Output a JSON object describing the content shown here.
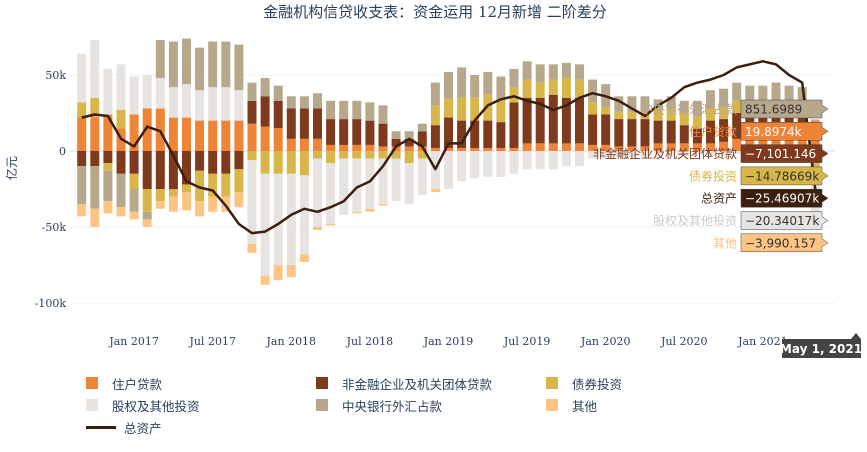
{
  "chart_data": {
    "type": "bar",
    "barmode": "relative",
    "title": "金融机构信贷收支表：资金运用 12月新增 二阶差分",
    "ylabel": "亿元",
    "ylim": [
      -115000,
      75000
    ],
    "yticks": [
      50000,
      0,
      -50000,
      -100000
    ],
    "ytick_labels": [
      "50k",
      "0",
      "-50k",
      "-100k"
    ],
    "x_start": "2016-09",
    "x_months": 57,
    "xticks": [
      "2017-01",
      "2017-07",
      "2018-01",
      "2018-07",
      "2019-01",
      "2019-07",
      "2020-01",
      "2020-07",
      "2021-01"
    ],
    "xtick_labels": [
      "Jan 2017",
      "Jul 2017",
      "Jan 2018",
      "Jul 2018",
      "Jan 2019",
      "Jul 2019",
      "Jan 2020",
      "Jul 2020",
      "Jan 2021"
    ],
    "series": [
      {
        "name": "住户贷款",
        "color": "#ed8438",
        "values": [
          22000,
          22000,
          24000,
          15000,
          24000,
          28000,
          28000,
          22000,
          22000,
          20000,
          20000,
          20000,
          20000,
          18000,
          16000,
          15000,
          8000,
          8000,
          8000,
          4000,
          4000,
          4000,
          4000,
          3000,
          3000,
          3000,
          3000,
          2000,
          2000,
          2000,
          2000,
          2000,
          2000,
          2000,
          5000,
          5000,
          5000,
          5000,
          5000,
          4000,
          4000,
          3000,
          3000,
          3000,
          5000,
          5000,
          5000,
          5000,
          5000,
          6000,
          8000,
          8000,
          8000,
          8000,
          8000,
          7000,
          19897
        ]
      },
      {
        "name": "非金融企业及机关团体贷款",
        "color": "#7e3a1c",
        "values": [
          -10000,
          -10000,
          -8000,
          -15000,
          -15000,
          -25000,
          -25000,
          -25000,
          -22000,
          -13000,
          -15000,
          -15000,
          -12000,
          15000,
          20000,
          18000,
          20000,
          20000,
          20000,
          17000,
          17000,
          17000,
          16000,
          15000,
          5000,
          5000,
          10000,
          15000,
          20000,
          18000,
          18000,
          18000,
          17000,
          30000,
          30000,
          30000,
          32000,
          30000,
          30000,
          20000,
          20000,
          18000,
          18000,
          18000,
          15000,
          15000,
          12000,
          10000,
          15000,
          15000,
          17000,
          15000,
          15000,
          17000,
          15000,
          15000,
          -7101
        ]
      },
      {
        "name": "债券投资",
        "color": "#d8b64a",
        "values": [
          10000,
          13000,
          -5000,
          12000,
          -10000,
          -15000,
          -8000,
          -5000,
          -5000,
          -20000,
          -15000,
          -15000,
          -15000,
          -6000,
          -15000,
          -15000,
          -15000,
          -16000,
          -5000,
          -8000,
          -5000,
          -5000,
          -5000,
          -5000,
          -5000,
          -8000,
          -5000,
          13000,
          12000,
          15000,
          15000,
          17000,
          15000,
          10000,
          12000,
          10000,
          10000,
          13000,
          12000,
          8000,
          5000,
          5000,
          5000,
          5000,
          8000,
          8000,
          8000,
          8000,
          8000,
          8000,
          8000,
          8000,
          8000,
          8000,
          8000,
          8000,
          -14787
        ]
      },
      {
        "name": "股权及其他投资",
        "color": "#e6e3e1",
        "values": [
          32000,
          38000,
          30000,
          30000,
          25000,
          22000,
          20000,
          20000,
          22000,
          20000,
          22000,
          22000,
          20000,
          -55000,
          -67000,
          -60000,
          -60000,
          -52000,
          -45000,
          -40000,
          -37000,
          -35000,
          -33000,
          -30000,
          -28000,
          -27000,
          -24000,
          -25000,
          -25000,
          -20000,
          -18000,
          -17000,
          -17000,
          -15000,
          -12000,
          -12000,
          -12000,
          -10000,
          -10000,
          -5000,
          -5000,
          -4000,
          -4000,
          -4000,
          -2000,
          -2000,
          -3000,
          -3000,
          -3000,
          -3000,
          -2000,
          -2000,
          -2000,
          -2000,
          -2000,
          -2000,
          -20340
        ]
      },
      {
        "name": "中央银行外汇占款",
        "color": "#b7a88c",
        "values": [
          -25000,
          -28000,
          -20000,
          -22000,
          -15000,
          -5000,
          25000,
          30000,
          30000,
          28000,
          30000,
          30000,
          30000,
          12000,
          12000,
          10000,
          8000,
          8000,
          10000,
          12000,
          12000,
          12000,
          12000,
          12000,
          5000,
          5000,
          5000,
          15000,
          18000,
          20000,
          15000,
          15000,
          15000,
          12000,
          12000,
          12000,
          10000,
          10000,
          10000,
          15000,
          15000,
          10000,
          10000,
          10000,
          6000,
          8000,
          8000,
          10000,
          12000,
          12000,
          12000,
          12000,
          12000,
          12000,
          12000,
          12000,
          852
        ]
      },
      {
        "name": "其他",
        "color": "#fdc483",
        "values": [
          -8000,
          -12000,
          -8000,
          -6000,
          -5000,
          -5000,
          -5000,
          -10000,
          -12000,
          -10000,
          -10000,
          -10000,
          -10000,
          -6000,
          -6000,
          -10000,
          -8000,
          -5000,
          -2000,
          -1000,
          0,
          -1000,
          -2000,
          -1000,
          0,
          0,
          0,
          -2000,
          0,
          0,
          0,
          0,
          0,
          0,
          0,
          0,
          0,
          0,
          0,
          0,
          0,
          0,
          0,
          0,
          0,
          0,
          0,
          0,
          0,
          0,
          0,
          0,
          0,
          0,
          0,
          0,
          -3990
        ]
      }
    ],
    "line": {
      "name": "总资产",
      "color": "#3d1f10",
      "values": [
        22000,
        24000,
        23000,
        8000,
        3000,
        16000,
        13000,
        -3000,
        -20000,
        -24000,
        -26000,
        -36000,
        -48000,
        -54000,
        -53000,
        -48000,
        -42000,
        -38000,
        -40000,
        -37000,
        -33000,
        -24000,
        -20000,
        -10000,
        3000,
        8000,
        3000,
        -12000,
        5000,
        5000,
        20000,
        30000,
        34000,
        36000,
        33000,
        31000,
        27000,
        30000,
        35000,
        38000,
        36000,
        33000,
        28000,
        23000,
        30000,
        35000,
        42000,
        45000,
        47000,
        50000,
        55000,
        57000,
        59000,
        57000,
        50000,
        45000,
        -25469
      ]
    },
    "hover": {
      "date": "May 1, 2021",
      "items": [
        {
          "name": "中央银行外汇占款",
          "value": "851.6989",
          "color": "#b7a88c",
          "text_color": "#b7a88c",
          "value_color": "#333333"
        },
        {
          "name": "住户贷款",
          "value": "19.8974k",
          "color": "#ed8438",
          "text_color": "#ed8438",
          "value_color": "#ffffff"
        },
        {
          "name": "非金融企业及机关团体贷款",
          "value": "−7,101.146",
          "color": "#7e3a1c",
          "text_color": "#7e3a1c",
          "value_color": "#ffffff"
        },
        {
          "name": "债券投资",
          "value": "−14.78669k",
          "color": "#d8b64a",
          "text_color": "#d8b64a",
          "value_color": "#333333"
        },
        {
          "name": "总资产",
          "value": "−25.46907k",
          "color": "#3d1f10",
          "text_color": "#3d1f10",
          "value_color": "#ffffff"
        },
        {
          "name": "股权及其他投资",
          "value": "−20.34017k",
          "color": "#e6e3e1",
          "text_color": "#cfcac6",
          "value_color": "#333333"
        },
        {
          "name": "其他",
          "value": "−3,990.157",
          "color": "#fdc483",
          "text_color": "#fdc483",
          "value_color": "#333333"
        }
      ]
    },
    "grid": true,
    "legend_position": "bottom"
  }
}
